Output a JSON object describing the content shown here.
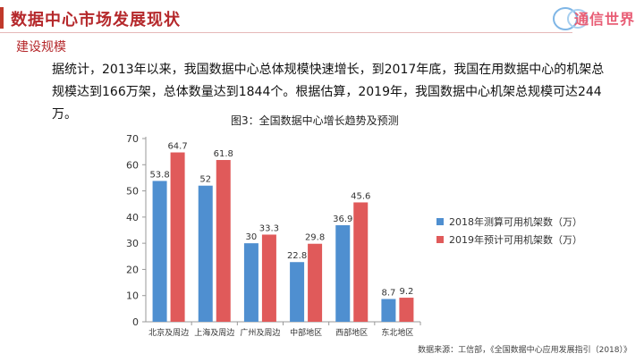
{
  "header": {
    "title": "数据中心市场发展现状",
    "subtitle": "建设规模",
    "logo_text": "通信世界"
  },
  "intro_text": "据统计，2013年以来，我国数据中心总体规模快速增长，到2017年底，我国在用数据中心的机架总规模达到166万架，总体数量达到1844个。根据估算，2019年，我国数据中心机架总规模可达244万。",
  "chart_data": {
    "type": "bar",
    "title": "图3：全国数据中心增长趋势及预测",
    "categories": [
      "北京及周边",
      "上海及周边",
      "广州及周边",
      "中部地区",
      "西部地区",
      "东北地区"
    ],
    "series": [
      {
        "name": "2018年测算可用机架数（万）",
        "values": [
          53.8,
          52,
          30,
          22.8,
          36.9,
          8.7
        ],
        "color": "#4f8fd0"
      },
      {
        "name": "2019年预计可用机架数（万）",
        "values": [
          64.7,
          61.8,
          33.3,
          29.8,
          45.6,
          9.2
        ],
        "color": "#e05a5a"
      }
    ],
    "ylim": [
      0,
      70
    ],
    "yticks": [
      0,
      10,
      20,
      30,
      40,
      50,
      60,
      70
    ],
    "legend_position": "right",
    "grid": false
  },
  "source_text": "数据来源：工信部，《全国数据中心应用发展指引（2018）》"
}
